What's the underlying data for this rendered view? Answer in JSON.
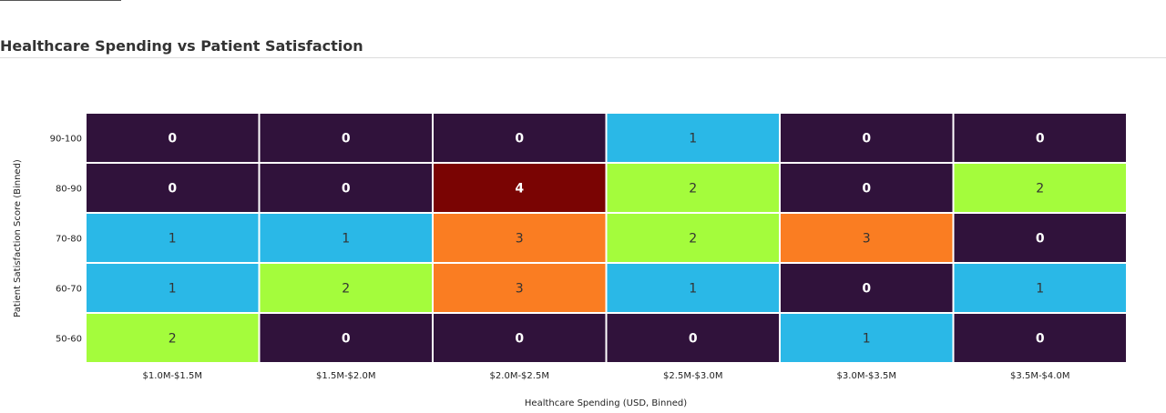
{
  "page": {
    "title": "Healthcare Spending vs Patient Satisfaction"
  },
  "chart_data": {
    "type": "heatmap",
    "title": "Healthcare Spending vs Patient Satisfaction",
    "xlabel": "Healthcare Spending (USD, Binned)",
    "ylabel": "Patient Satisfaction Score (Binned)",
    "x_categories": [
      "$1.0M-$1.5M",
      "$1.5M-$2.0M",
      "$2.0M-$2.5M",
      "$2.5M-$3.0M",
      "$3.0M-$3.5M",
      "$3.5M-$4.0M"
    ],
    "y_categories": [
      "90-100",
      "80-90",
      "70-80",
      "60-70",
      "50-60"
    ],
    "values": [
      [
        0,
        0,
        0,
        1,
        0,
        0
      ],
      [
        0,
        0,
        4,
        2,
        0,
        2
      ],
      [
        1,
        1,
        3,
        2,
        3,
        0
      ],
      [
        1,
        2,
        3,
        1,
        0,
        1
      ],
      [
        2,
        0,
        0,
        0,
        1,
        0
      ]
    ],
    "color_scale": {
      "0": "#30123b",
      "1": "#2ab8e7",
      "2": "#a4fc3c",
      "3": "#fa7d22",
      "4": "#7a0403"
    },
    "label_colors": {
      "dark": "#ffffff",
      "light": "#333333"
    },
    "legend": "none"
  }
}
